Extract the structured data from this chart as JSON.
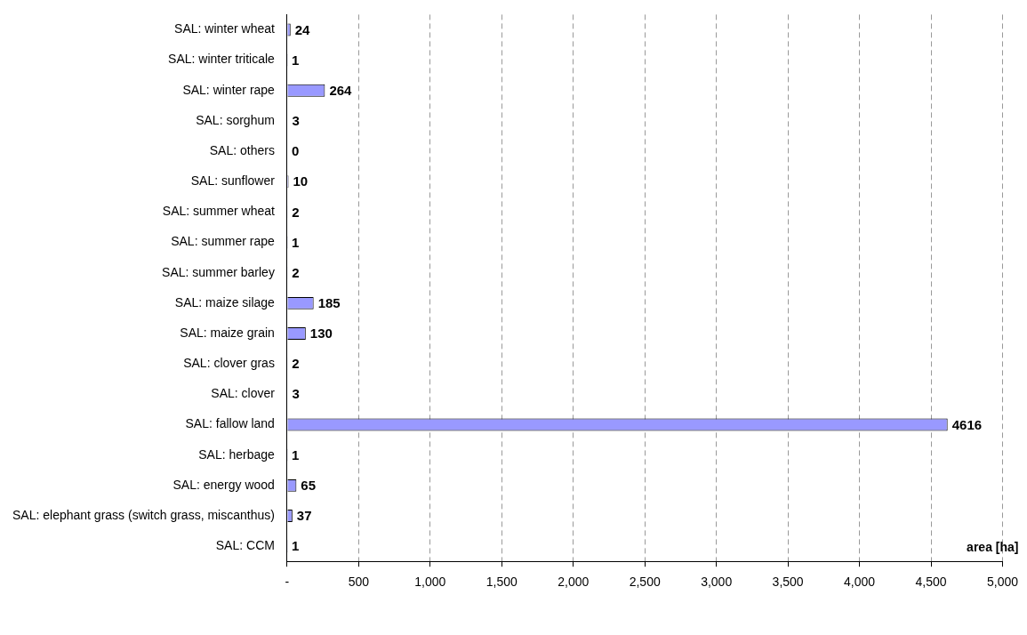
{
  "chart_data": {
    "type": "bar",
    "orientation": "horizontal",
    "xlabel": "area [ha]",
    "categories": [
      "SAL: winter wheat",
      "SAL: winter triticale",
      "SAL: winter rape",
      "SAL: sorghum",
      "SAL: others",
      "SAL: sunflower",
      "SAL: summer wheat",
      "SAL: summer rape",
      "SAL: summer barley",
      "SAL: maize silage",
      "SAL: maize grain",
      "SAL: clover gras",
      "SAL: clover",
      "SAL: fallow land",
      "SAL: herbage",
      "SAL: energy wood",
      "SAL: elephant grass (switch grass, miscanthus)",
      "SAL: CCM"
    ],
    "values": [
      24,
      1,
      264,
      3,
      0,
      10,
      2,
      1,
      2,
      185,
      130,
      2,
      3,
      4616,
      1,
      65,
      37,
      1
    ],
    "color": "#9999ff",
    "data_labels": true,
    "xlim": [
      0,
      5000
    ],
    "xticks": [
      {
        "value": 0,
        "label": "-"
      },
      500,
      {
        "value": 1000,
        "label": "1,000"
      },
      {
        "value": 1500,
        "label": "1,500"
      },
      {
        "value": 2000,
        "label": "2,000"
      },
      {
        "value": 2500,
        "label": "2,500"
      },
      {
        "value": 3000,
        "label": "3,000"
      },
      {
        "value": 3500,
        "label": "3,500"
      },
      {
        "value": 4000,
        "label": "4,000"
      },
      {
        "value": 4500,
        "label": "4,500"
      },
      {
        "value": 5000,
        "label": "5,000"
      }
    ],
    "grid": "x",
    "legend": false
  }
}
